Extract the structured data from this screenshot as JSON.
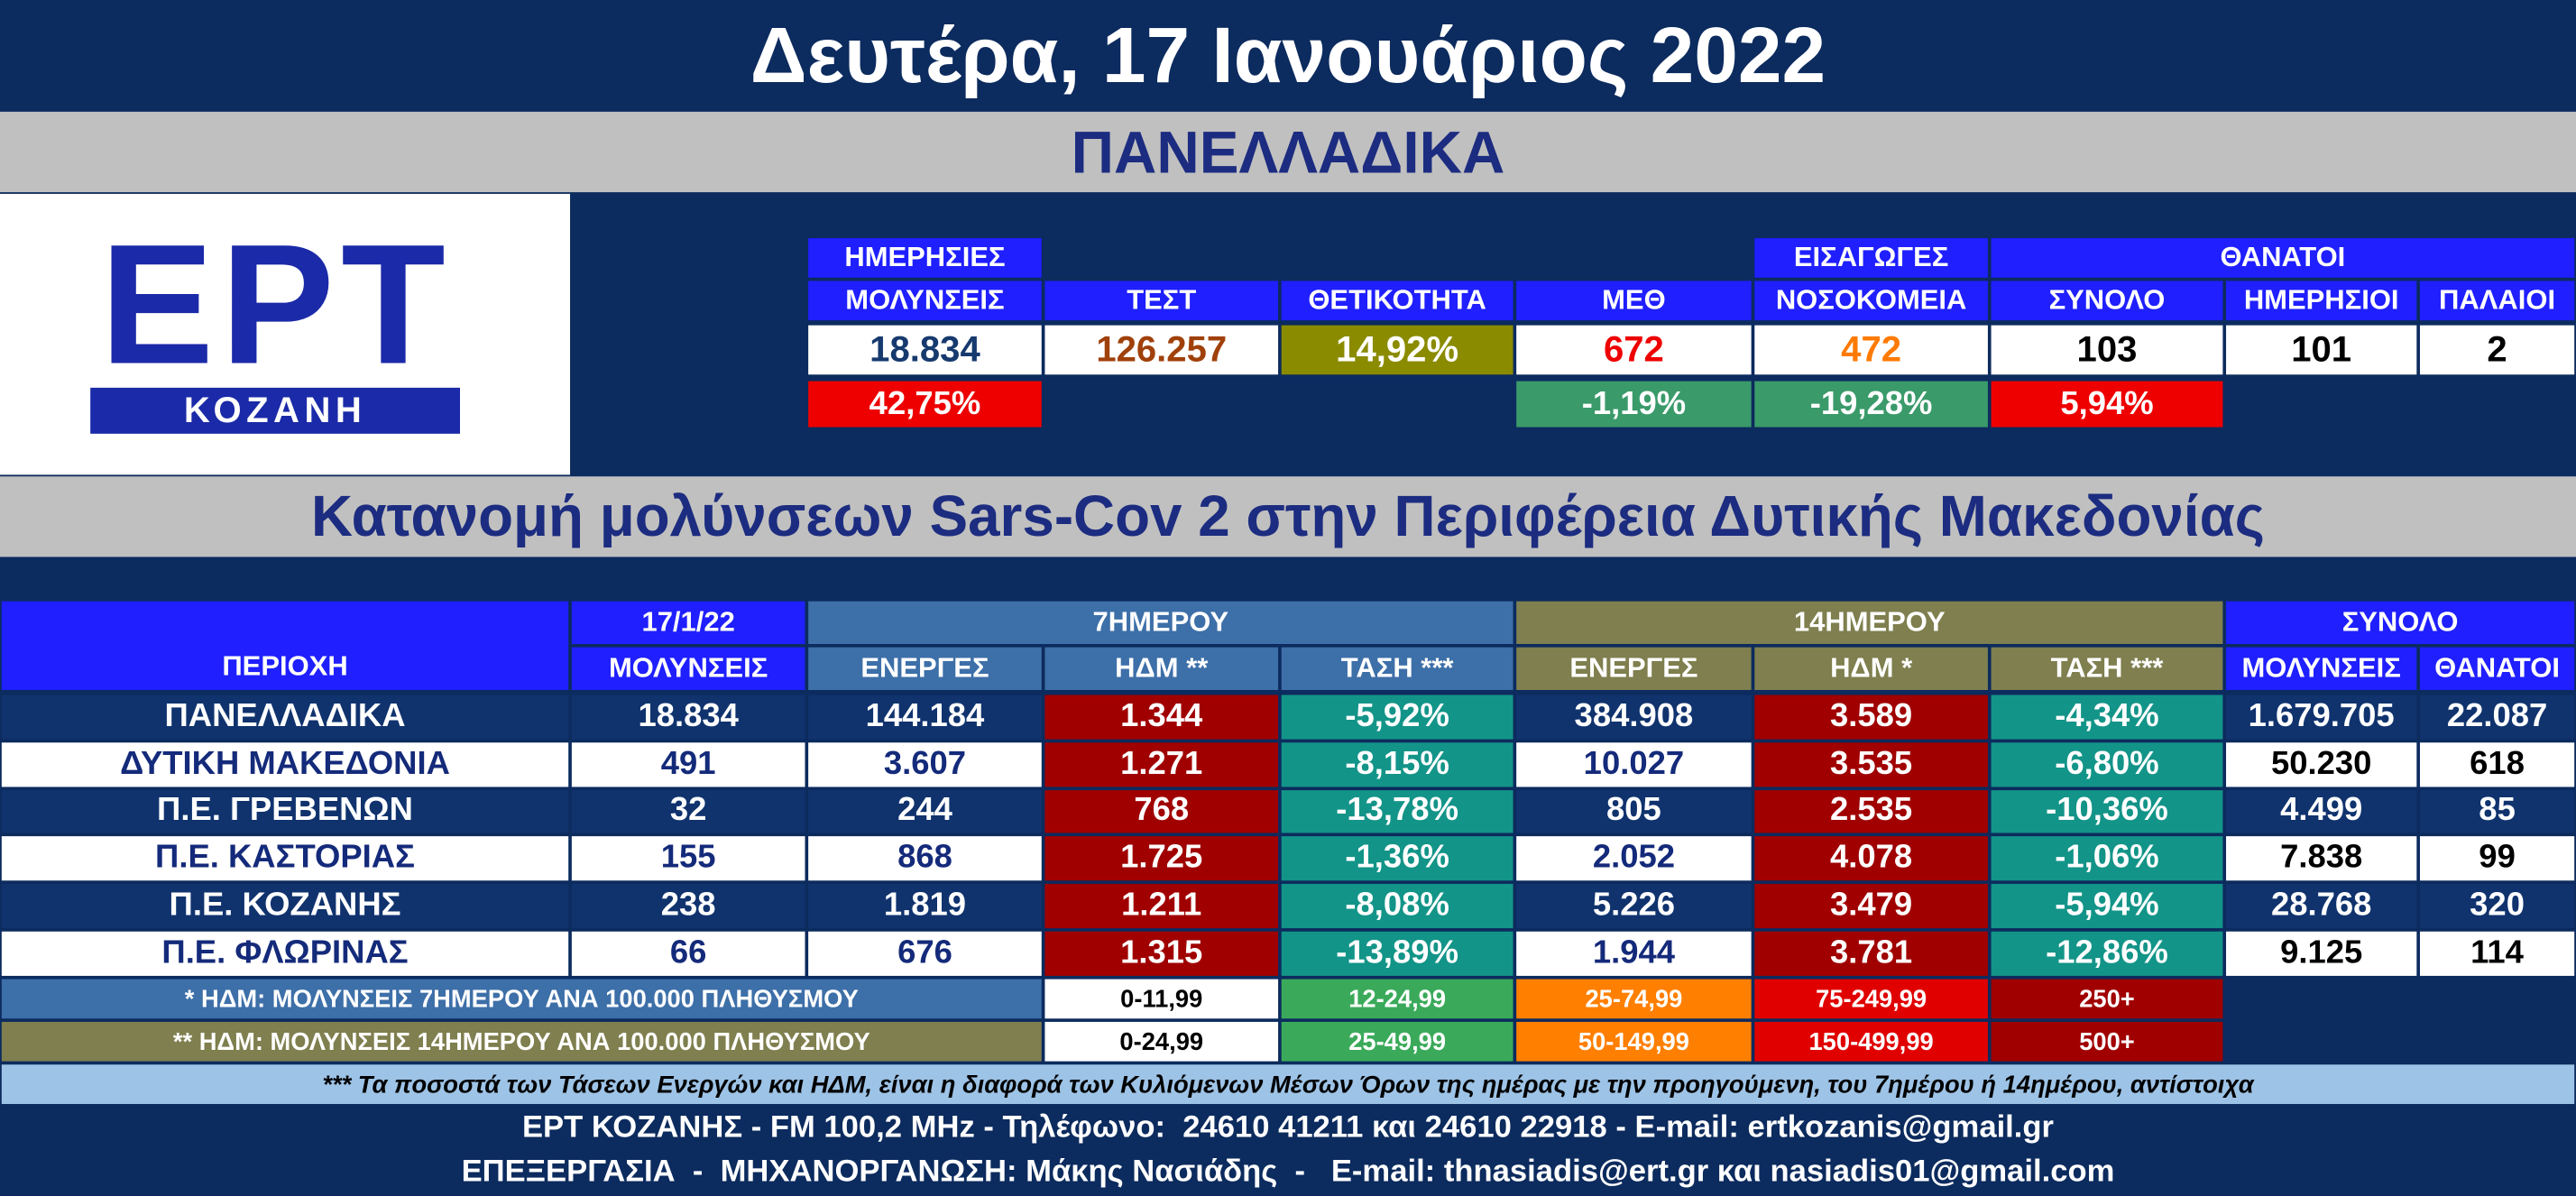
{
  "header": {
    "title": "Δευτέρα, 17 Ιανουάριος 2022"
  },
  "national": {
    "title": "ΠΑΝΕΛΛΑΔΙΚΑ",
    "logo": {
      "brand": "ΕΡΤ",
      "station": "ΚΟΖΑΝΗ"
    },
    "deaths_group": "ΘΑΝΑΤΟΙ",
    "columns": [
      {
        "label": [
          "ΗΜΕΡΗΣΙΕΣ",
          "ΜΟΛΥΝΣΕΙΣ"
        ],
        "value": "18.834",
        "change": "42,75%"
      },
      {
        "label": [
          "ΤΕΣΤ"
        ],
        "value": "126.257"
      },
      {
        "label": [
          "ΘΕΤΙΚΟΤΗΤΑ"
        ],
        "value": "14,92%"
      },
      {
        "label": [
          "ΜΕΘ"
        ],
        "value": "672",
        "change": "-1,19%"
      },
      {
        "label": [
          "ΕΙΣΑΓΩΓΕΣ",
          "ΝΟΣΟΚΟΜΕΙΑ"
        ],
        "value": "472",
        "change": "-19,28%"
      },
      {
        "label": [
          "ΣΥΝΟΛΟ"
        ],
        "value": "103",
        "change": "5,94%"
      },
      {
        "label": [
          "ΗΜΕΡΗΣΙΟΙ"
        ],
        "value": "101"
      },
      {
        "label": [
          "ΠΑΛΑΙΟΙ"
        ],
        "value": "2"
      }
    ]
  },
  "table": {
    "title": "Κατανομή μολύνσεων Sars-Cov 2 στην Περιφέρεια Δυτικής Μακεδονίας",
    "header": {
      "region": "ΠΕΡΙΟΧΗ",
      "date": "17/1/22",
      "week": "7ΗΜΕΡΟΥ",
      "fortnight": "14ΗΜΕΡΟΥ",
      "total": "ΣΥΝΟΛΟ",
      "columns": [
        "ΜΟΛΥΝΣΕΙΣ",
        "ΕΝΕΡΓΕΣ",
        "ΗΔΜ **",
        "ΤΑΣΗ ***",
        "ΕΝΕΡΓΕΣ",
        "ΗΔΜ *",
        "ΤΑΣΗ ***",
        "ΜΟΛΥΝΣΕΙΣ",
        "ΘΑΝΑΤΟΙ"
      ]
    },
    "rows": [
      [
        "ΠΑΝΕΛΛΑΔΙΚΑ",
        "18.834",
        "144.184",
        "1.344",
        "-5,92%",
        "384.908",
        "3.589",
        "-4,34%",
        "1.679.705",
        "22.087"
      ],
      [
        "ΔΥΤΙΚΗ ΜΑΚΕΔΟΝΙΑ",
        "491",
        "3.607",
        "1.271",
        "-8,15%",
        "10.027",
        "3.535",
        "-6,80%",
        "50.230",
        "618"
      ],
      [
        "Π.Ε. ΓΡΕΒΕΝΩΝ",
        "32",
        "244",
        "768",
        "-13,78%",
        "805",
        "2.535",
        "-10,36%",
        "4.499",
        "85"
      ],
      [
        "Π.Ε. ΚΑΣΤΟΡΙΑΣ",
        "155",
        "868",
        "1.725",
        "-1,36%",
        "2.052",
        "4.078",
        "-1,06%",
        "7.838",
        "99"
      ],
      [
        "Π.Ε. ΚΟΖΑΝΗΣ",
        "238",
        "1.819",
        "1.211",
        "-8,08%",
        "5.226",
        "3.479",
        "-5,94%",
        "28.768",
        "320"
      ],
      [
        "Π.Ε. ΦΛΩΡΙΝΑΣ",
        "66",
        "676",
        "1.315",
        "-13,89%",
        "1.944",
        "3.781",
        "-12,86%",
        "9.125",
        "114"
      ]
    ]
  },
  "legend": [
    {
      "label": "* ΗΔΜ: ΜΟΛΥΝΣΕΙΣ 7ΗΜΕΡΟΥ ΑΝΑ 100.000 ΠΛΗΘΥΣΜΟΥ",
      "ranges": [
        "0-11,99",
        "12-24,99",
        "25-74,99",
        "75-249,99",
        "250+"
      ]
    },
    {
      "label": "** ΗΔΜ: ΜΟΛΥΝΣΕΙΣ 14ΗΜΕΡΟΥ ΑΝΑ 100.000 ΠΛΗΘΥΣΜΟΥ",
      "ranges": [
        "0-24,99",
        "25-49,99",
        "50-149,99",
        "150-499,99",
        "500+"
      ]
    }
  ],
  "footnote": "*** Τα ποσοστά των Τάσεων Ενεργών και ΗΔΜ, είναι η διαφορά των Κυλιόμενων Μέσων Όρων της ημέρας με την προηγούμενη, του 7ημέρου ή 14ημέρου, αντίστοιχα",
  "footer": [
    "ΕΡΤ ΚΟΖΑΝΗΣ - FM 100,2 MHz - Τηλέφωνο:  24610 41211 και 24610 22918 - E-mail: ertkozanis@gmail.gr",
    "ΕΠΕΞΕΡΓΑΣΙΑ  -  ΜΗΧΑΝΟΡΓΑΝΩΣΗ: Μάκης Νασιάδης  -   E-mail: thnasiadis@ert.gr και nasiadis01@gmail.com"
  ]
}
